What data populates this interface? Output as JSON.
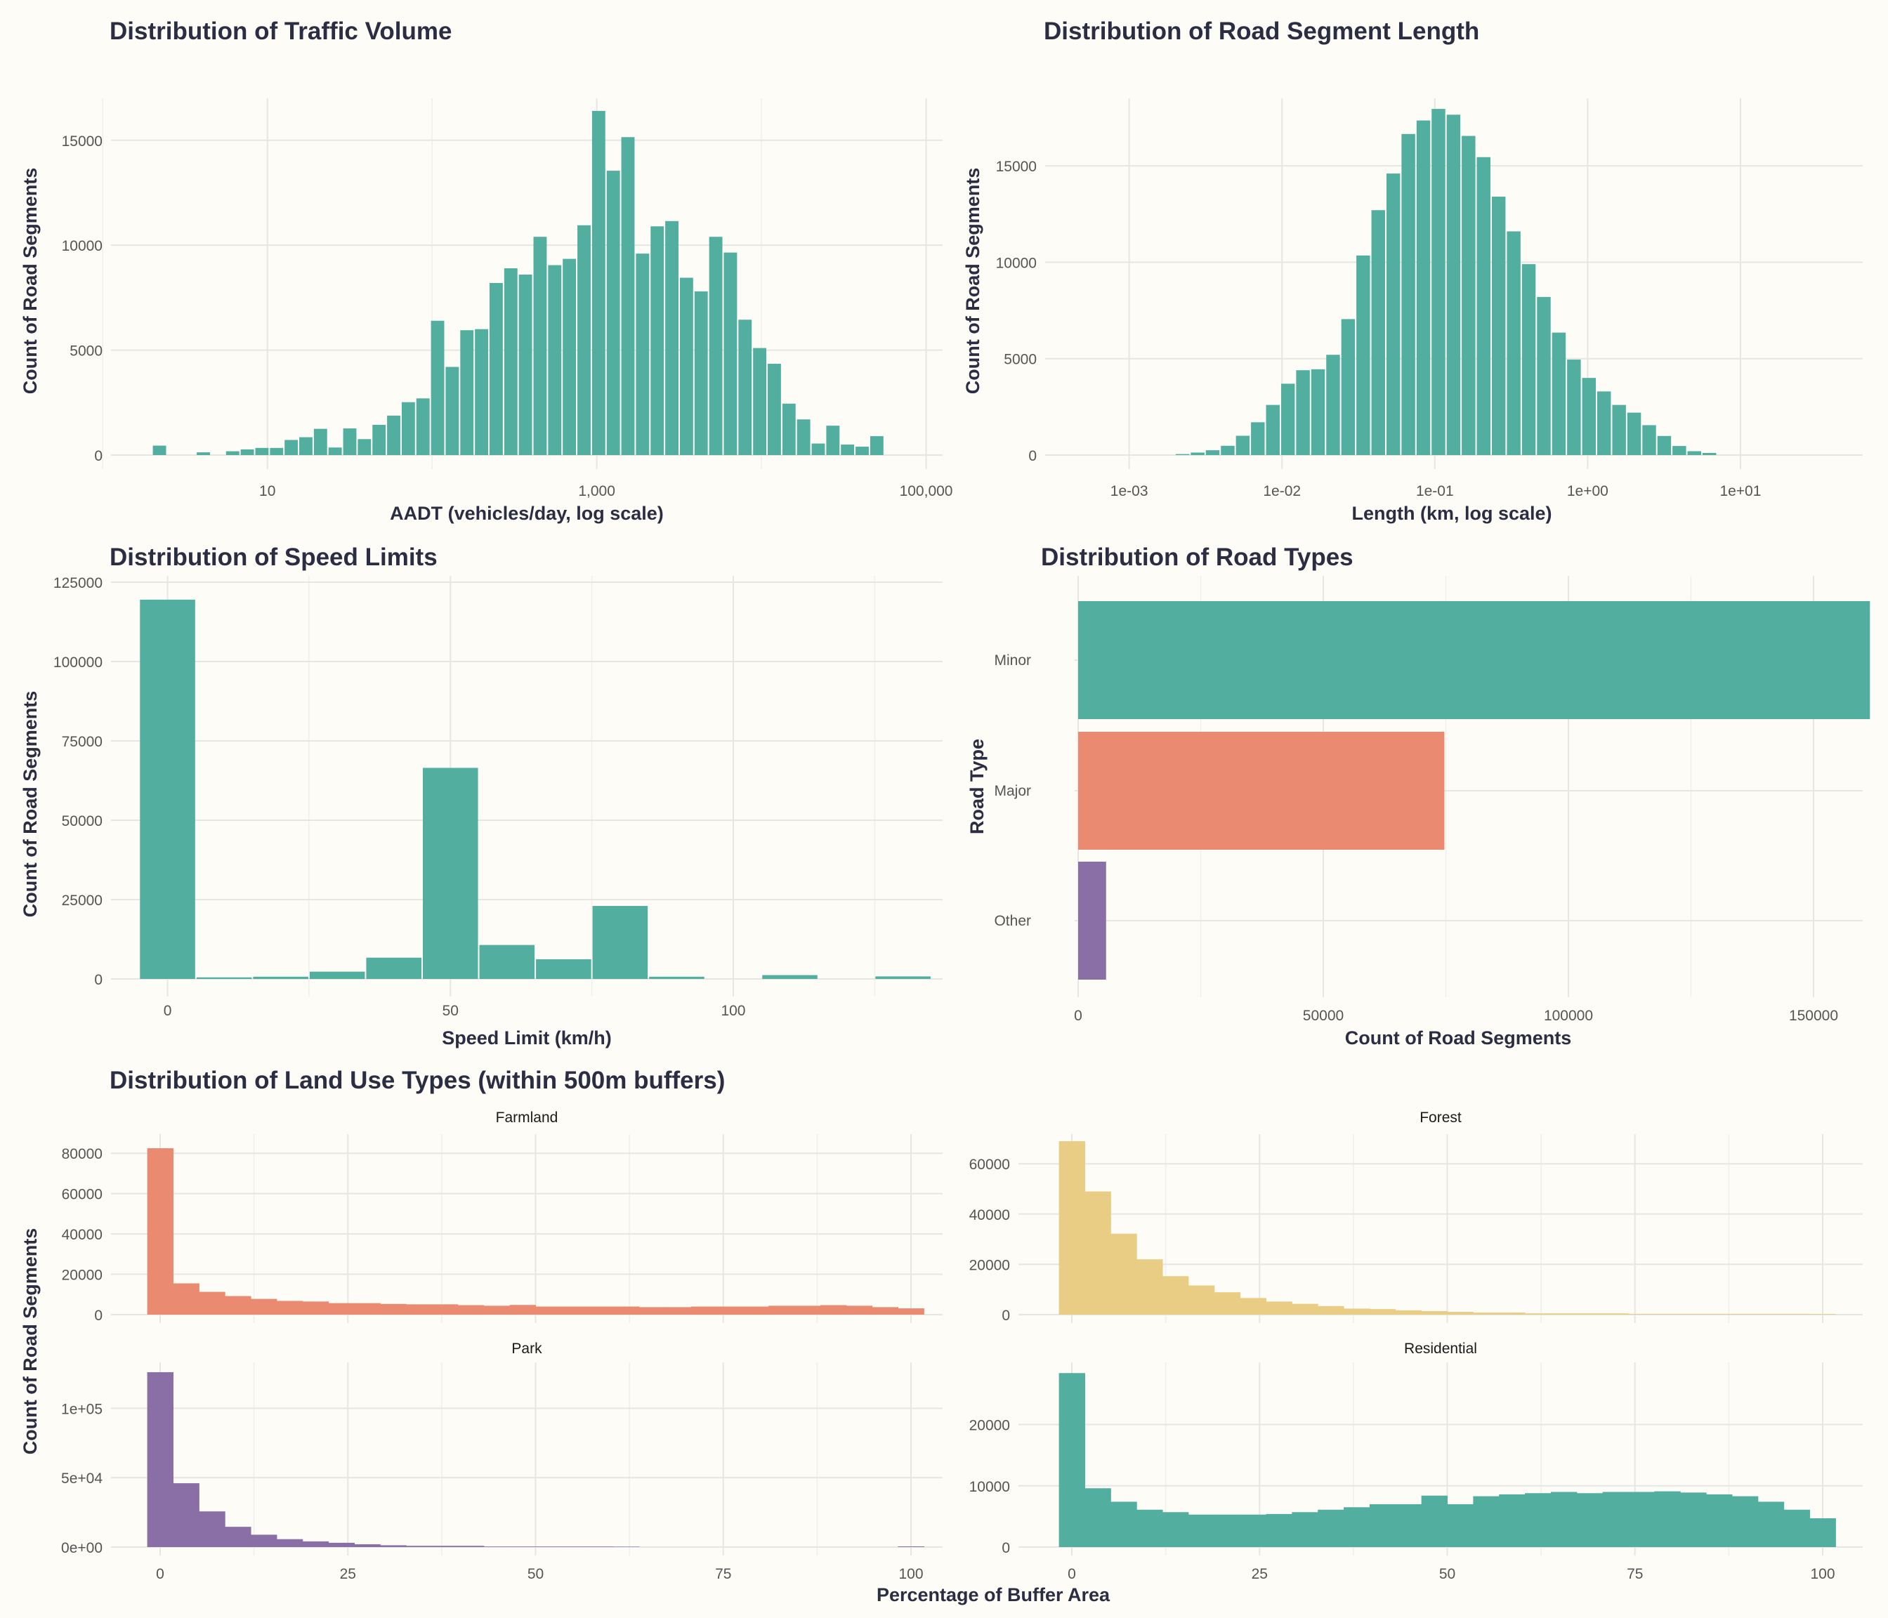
{
  "colors": {
    "background": "#fdfcf7",
    "teal": "#52ae9f",
    "coral": "#ea8a70",
    "purple": "#8a6ea6",
    "sand": "#e9cd85",
    "text_dark": "#2b2d42"
  },
  "chart_data": [
    {
      "id": "traffic",
      "type": "bar",
      "title": "Distribution of Traffic Volume",
      "xlabel": "AADT (vehicles/day, log scale)",
      "ylabel": "Count of Road Segments",
      "x_scale": "log10",
      "x_ticks": [
        {
          "value": 10,
          "label": "10"
        },
        {
          "value": 1000,
          "label": "1,000"
        },
        {
          "value": 100000,
          "label": "100,000"
        }
      ],
      "y_ticks": [
        {
          "value": 0,
          "label": "0"
        },
        {
          "value": 5000,
          "label": "5000"
        },
        {
          "value": 10000,
          "label": "10000"
        },
        {
          "value": 15000,
          "label": "15000"
        }
      ],
      "ylim": [
        0,
        17000
      ],
      "grid": true,
      "color": "teal",
      "bin_log10_start": 0.3,
      "bin_log10_width": 0.0889,
      "values": [
        450,
        0,
        0,
        130,
        0,
        180,
        270,
        340,
        340,
        720,
        850,
        1250,
        360,
        1270,
        760,
        1440,
        1880,
        2520,
        2700,
        6400,
        4200,
        5950,
        6000,
        8200,
        8900,
        8600,
        10400,
        9050,
        9350,
        10950,
        16400,
        13550,
        15150,
        9600,
        10900,
        11150,
        8450,
        7800,
        10400,
        9650,
        6450,
        5100,
        4350,
        2450,
        1700,
        550,
        1400,
        500,
        400,
        900
      ],
      "grid_minor_x": [
        1,
        100,
        10000
      ]
    },
    {
      "id": "length",
      "type": "bar",
      "title": "Distribution of Road Segment Length",
      "xlabel": "Length (km, log scale)",
      "ylabel": "Count of Road Segments",
      "x_scale": "log10",
      "x_ticks": [
        {
          "value": 0.001,
          "label": "1e-03"
        },
        {
          "value": 0.01,
          "label": "1e-02"
        },
        {
          "value": 0.1,
          "label": "1e-01"
        },
        {
          "value": 1,
          "label": "1e+00"
        },
        {
          "value": 10,
          "label": "1e+01"
        }
      ],
      "y_ticks": [
        {
          "value": 0,
          "label": "0"
        },
        {
          "value": 5000,
          "label": "5000"
        },
        {
          "value": 10000,
          "label": "10000"
        },
        {
          "value": 15000,
          "label": "15000"
        }
      ],
      "ylim": [
        0,
        18500
      ],
      "grid": true,
      "color": "teal",
      "bin_log10_start": -2.7,
      "bin_log10_width": 0.0985,
      "values": [
        50,
        130,
        250,
        480,
        1000,
        1700,
        2600,
        3700,
        4400,
        4450,
        5200,
        7050,
        10350,
        12700,
        14600,
        16650,
        17350,
        17950,
        17650,
        16550,
        15450,
        13400,
        11600,
        9900,
        8200,
        6350,
        4950,
        4000,
        3300,
        2600,
        2200,
        1550,
        990,
        470,
        200,
        110
      ]
    },
    {
      "id": "speed",
      "type": "bar",
      "title": "Distribution of Speed Limits",
      "xlabel": "Speed Limit (km/h)",
      "ylabel": "Count of Road Segments",
      "x_scale": "linear",
      "xlim": [
        -10,
        137
      ],
      "x_ticks": [
        {
          "value": 0,
          "label": "0"
        },
        {
          "value": 50,
          "label": "50"
        },
        {
          "value": 100,
          "label": "100"
        }
      ],
      "y_ticks": [
        {
          "value": 0,
          "label": "0"
        },
        {
          "value": 25000,
          "label": "25000"
        },
        {
          "value": 50000,
          "label": "50000"
        },
        {
          "value": 75000,
          "label": "75000"
        },
        {
          "value": 100000,
          "label": "100000"
        },
        {
          "value": 125000,
          "label": "125000"
        }
      ],
      "ylim": [
        0,
        127000
      ],
      "grid": true,
      "color": "teal",
      "bin_start": -5,
      "bin_width": 10,
      "values": [
        119500,
        500,
        700,
        2300,
        6700,
        66500,
        10700,
        6200,
        23000,
        700,
        0,
        1200,
        0,
        800
      ]
    },
    {
      "id": "roadtypes",
      "type": "bar",
      "orientation": "horizontal",
      "title": "Distribution of Road Types",
      "xlabel": "Count of Road Segments",
      "ylabel": "Road Type",
      "categories": [
        "Minor",
        "Major",
        "Other"
      ],
      "values": [
        161500,
        74700,
        5700
      ],
      "bar_colors": [
        "teal",
        "coral",
        "purple"
      ],
      "x_ticks": [
        {
          "value": 0,
          "label": "0"
        },
        {
          "value": 50000,
          "label": "50000"
        },
        {
          "value": 100000,
          "label": "100000"
        },
        {
          "value": 150000,
          "label": "150000"
        }
      ],
      "xlim": [
        0,
        170000
      ],
      "grid": true
    },
    {
      "id": "landuse",
      "type": "bar",
      "title": "Distribution of Land Use Types (within 500m buffers)",
      "xlabel": "Percentage of Buffer Area",
      "ylabel": "Count of Road Segments",
      "x_ticks": [
        {
          "value": 0,
          "label": "0"
        },
        {
          "value": 25,
          "label": "25"
        },
        {
          "value": 50,
          "label": "50"
        },
        {
          "value": 75,
          "label": "75"
        },
        {
          "value": 100,
          "label": "100"
        }
      ],
      "xlim": [
        -5,
        106
      ],
      "bin_start": -1.72,
      "bin_width": 3.448,
      "facets": [
        {
          "name": "Farmland",
          "color": "coral",
          "ylim": [
            0,
            86000
          ],
          "y_ticks": [
            {
              "value": 0,
              "label": "0"
            },
            {
              "value": 20000,
              "label": "20000"
            },
            {
              "value": 40000,
              "label": "40000"
            },
            {
              "value": 60000,
              "label": "60000"
            },
            {
              "value": 80000,
              "label": "80000"
            }
          ],
          "values": [
            82500,
            15500,
            11300,
            9200,
            7800,
            6800,
            6500,
            5700,
            5700,
            5300,
            5100,
            5100,
            4700,
            4400,
            4800,
            4000,
            4000,
            4000,
            4000,
            3700,
            3700,
            4000,
            4000,
            4000,
            4400,
            4400,
            4700,
            4400,
            3700,
            3100
          ]
        },
        {
          "name": "Forest",
          "color": "sand",
          "ylim": [
            0,
            69000
          ],
          "y_ticks": [
            {
              "value": 0,
              "label": "0"
            },
            {
              "value": 20000,
              "label": "20000"
            },
            {
              "value": 40000,
              "label": "40000"
            },
            {
              "value": 60000,
              "label": "60000"
            }
          ],
          "values": [
            69000,
            49000,
            32200,
            22000,
            15300,
            11600,
            8900,
            6600,
            5200,
            4300,
            3400,
            2400,
            2200,
            1700,
            1400,
            1100,
            800,
            800,
            500,
            500,
            500,
            500,
            300,
            300,
            300,
            300,
            300,
            300,
            300,
            250
          ]
        },
        {
          "name": "Park",
          "color": "purple",
          "ylim": [
            0,
            128000
          ],
          "y_ticks": [
            {
              "value": 0,
              "label": "0e+00"
            },
            {
              "value": 50000,
              "label": "5e+04"
            },
            {
              "value": 100000,
              "label": "1e+05"
            }
          ],
          "values": [
            126000,
            46000,
            25700,
            14600,
            8900,
            5700,
            4100,
            3100,
            2000,
            1300,
            900,
            900,
            900,
            400,
            400,
            400,
            400,
            400,
            300,
            0,
            0,
            0,
            0,
            0,
            0,
            0,
            0,
            0,
            0,
            500
          ]
        },
        {
          "name": "Residential",
          "color": "teal",
          "ylim": [
            0,
            29000
          ],
          "y_ticks": [
            {
              "value": 0,
              "label": "0"
            },
            {
              "value": 10000,
              "label": "10000"
            },
            {
              "value": 20000,
              "label": "20000"
            }
          ],
          "values": [
            28400,
            9600,
            7400,
            6100,
            5700,
            5300,
            5300,
            5300,
            5400,
            5700,
            6100,
            6500,
            7000,
            7000,
            8400,
            7000,
            8300,
            8600,
            8800,
            9000,
            8800,
            9000,
            9000,
            9100,
            8900,
            8600,
            8300,
            7400,
            6100,
            4700
          ]
        }
      ]
    }
  ]
}
